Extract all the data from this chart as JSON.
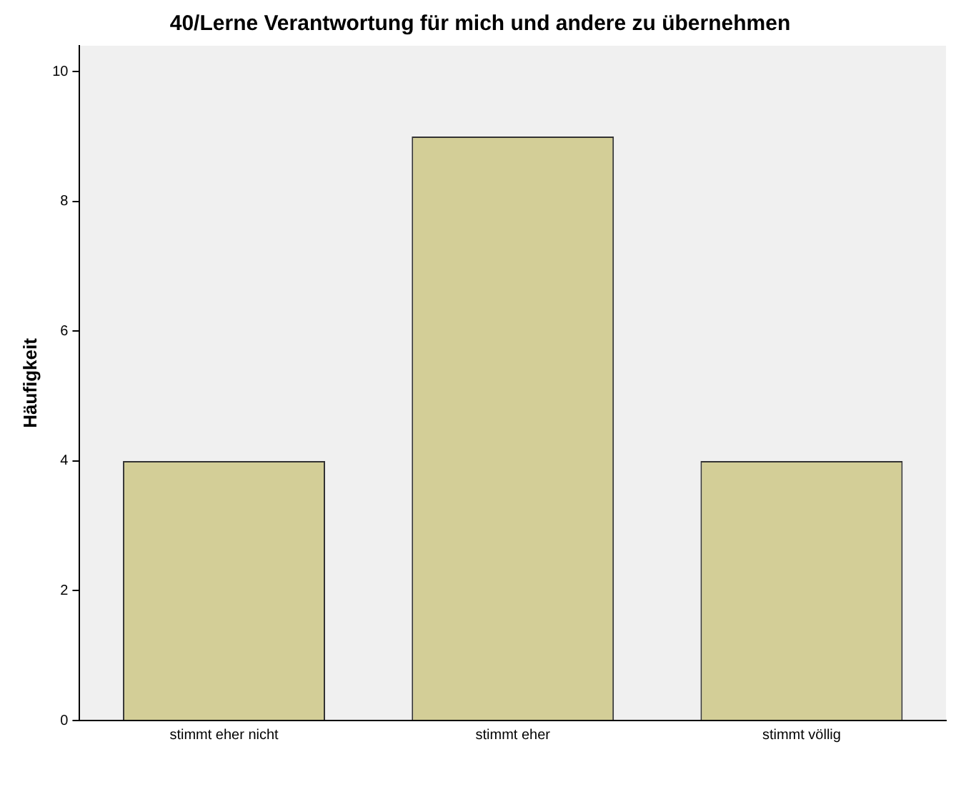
{
  "chart_data": {
    "type": "bar",
    "title": "40/Lerne Verantwortung für mich und andere zu übernehmen",
    "ylabel": "Häufigkeit",
    "categories": [
      "stimmt eher nicht",
      "stimmt eher",
      "stimmt völlig"
    ],
    "values": [
      4,
      9,
      4
    ],
    "color": "#d3ce97",
    "ylim": [
      0,
      10.4
    ],
    "yticks": [
      0,
      2,
      4,
      6,
      8,
      10
    ],
    "grid": false,
    "legend": false
  }
}
